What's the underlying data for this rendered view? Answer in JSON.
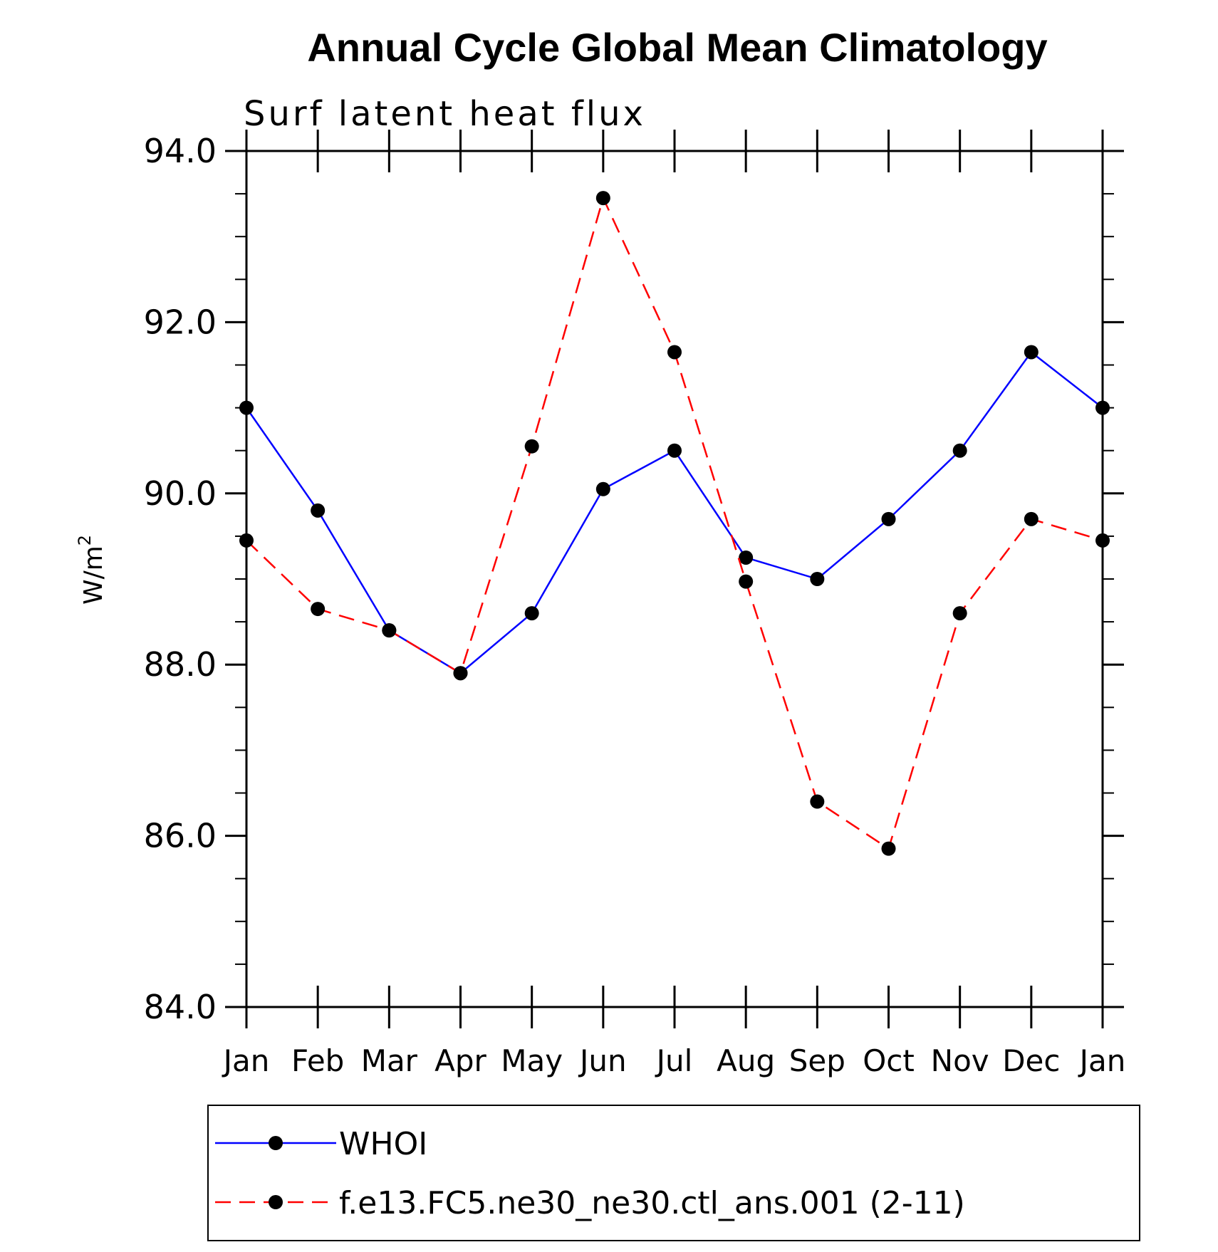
{
  "chart_data": {
    "type": "line",
    "title": "Annual Cycle Global Mean Climatology",
    "subtitle": "Surf latent heat flux",
    "ylabel_base": "W/m",
    "ylabel_sup": "2",
    "xlabel": "",
    "categories": [
      "Jan",
      "Feb",
      "Mar",
      "Apr",
      "May",
      "Jun",
      "Jul",
      "Aug",
      "Sep",
      "Oct",
      "Nov",
      "Dec",
      "Jan"
    ],
    "ylim": [
      84.0,
      94.0
    ],
    "yticks": [
      "84.0",
      "86.0",
      "88.0",
      "90.0",
      "92.0",
      "94.0"
    ],
    "ytick_values": [
      84,
      86,
      88,
      90,
      92,
      94
    ],
    "yminor_step": 0.5,
    "grid": false,
    "legend_position": "bottom",
    "series": [
      {
        "name": "WHOI",
        "color": "#0000ff",
        "dash": "solid",
        "values": [
          91.0,
          89.8,
          88.4,
          87.9,
          88.6,
          90.05,
          90.5,
          89.25,
          89.0,
          89.7,
          90.5,
          91.65,
          91.0
        ]
      },
      {
        "name": "f.e13.FC5.ne30_ne30.ctl_ans.001 (2-11)",
        "color": "#ff0000",
        "dash": "dashed",
        "values": [
          89.45,
          88.65,
          88.4,
          87.9,
          90.55,
          93.45,
          91.65,
          88.97,
          86.4,
          85.85,
          88.6,
          89.7,
          89.45
        ]
      }
    ]
  }
}
